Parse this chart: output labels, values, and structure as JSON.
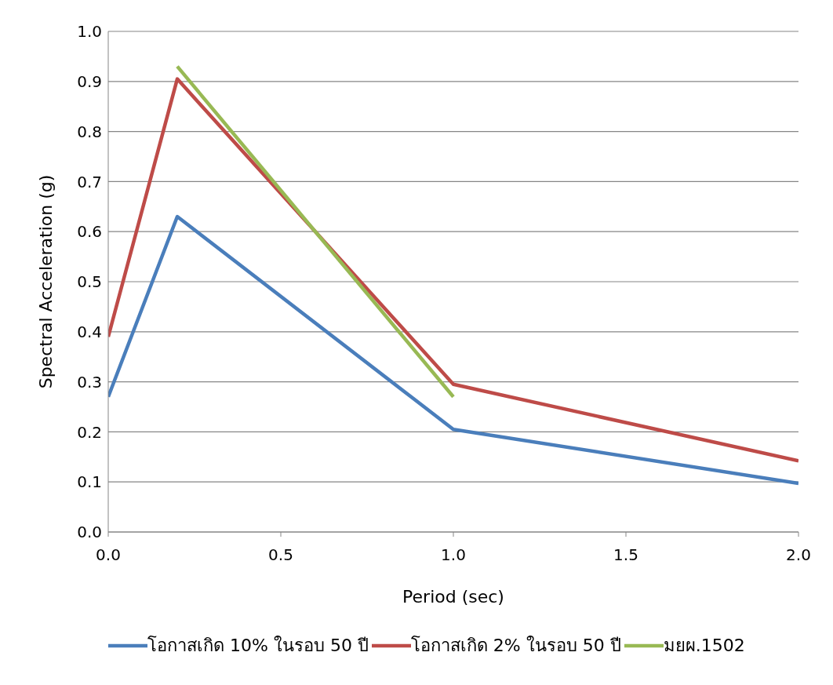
{
  "chart_data": {
    "type": "line",
    "xlabel": "Period (sec)",
    "ylabel": "Spectral Acceleration (g)",
    "xlim": [
      0,
      2
    ],
    "xticks": [
      {
        "value": 0,
        "label": "0.0"
      },
      {
        "value": 0.5,
        "label": "0.5"
      },
      {
        "value": 1,
        "label": "1.0"
      },
      {
        "value": 1.5,
        "label": "1.5"
      },
      {
        "value": 2,
        "label": "2.0"
      }
    ],
    "ylim": [
      0,
      1
    ],
    "yticks": [
      {
        "value": 0,
        "label": "0.0"
      },
      {
        "value": 0.1,
        "label": "0.1"
      },
      {
        "value": 0.2,
        "label": "0.2"
      },
      {
        "value": 0.3,
        "label": "0.3"
      },
      {
        "value": 0.4,
        "label": "0.4"
      },
      {
        "value": 0.5,
        "label": "0.5"
      },
      {
        "value": 0.6,
        "label": "0.6"
      },
      {
        "value": 0.7,
        "label": "0.7"
      },
      {
        "value": 0.8,
        "label": "0.8"
      },
      {
        "value": 0.9,
        "label": "0.9"
      },
      {
        "value": 1,
        "label": "1.0"
      }
    ],
    "grid": "y",
    "legend": "bottom",
    "marker": "none",
    "line_style": "solid",
    "series": [
      {
        "name": "โอกาสเกิด 10% ในรอบ 50 ปี",
        "color": "#4a7ebb",
        "x": [
          0,
          0.2,
          1,
          2
        ],
        "values": [
          0.27,
          0.63,
          0.205,
          0.097
        ]
      },
      {
        "name": "โอกาสเกิด 2% ในรอบ 50 ปี",
        "color": "#be4b48",
        "x": [
          0,
          0.2,
          1,
          2
        ],
        "values": [
          0.39,
          0.905,
          0.295,
          0.142
        ]
      },
      {
        "name": "มยผ.1502",
        "color": "#98b954",
        "x": [
          0.2,
          1
        ],
        "values": [
          0.93,
          0.27
        ]
      }
    ]
  }
}
